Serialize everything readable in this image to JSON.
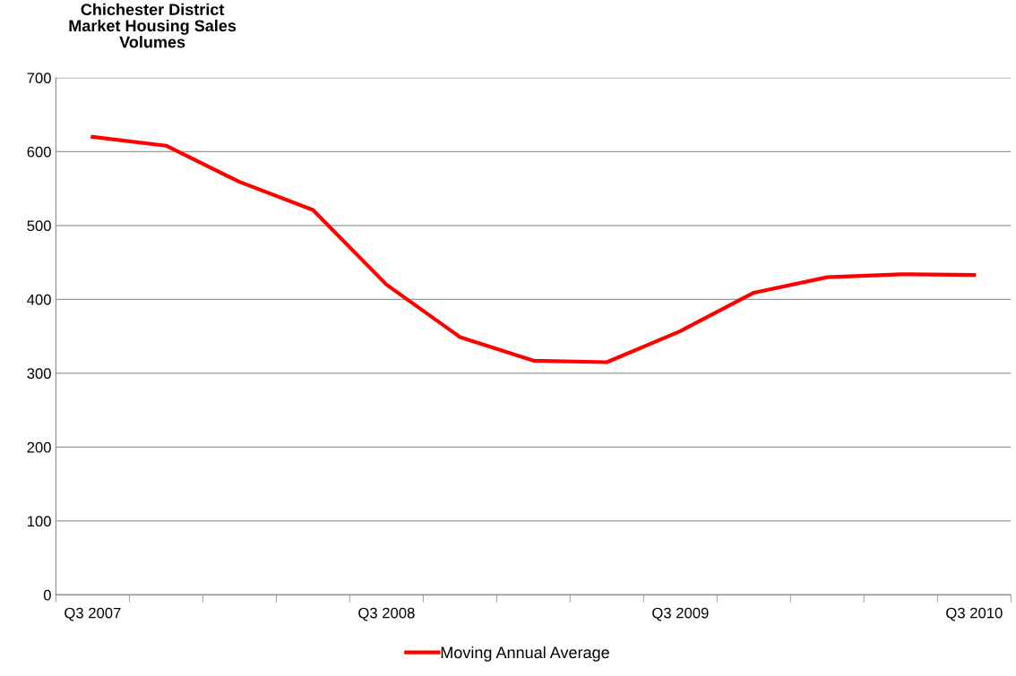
{
  "chart_data": {
    "type": "line",
    "title": "Chichester District\nMarket Housing Sales\nVolumes",
    "categories": [
      "Q3 2007",
      null,
      null,
      null,
      "Q3 2008",
      null,
      null,
      null,
      "Q3 2009",
      null,
      null,
      null,
      "Q3 2010"
    ],
    "series": [
      {
        "name": "Moving Annual Average",
        "color": "#ff0000",
        "values": [
          620,
          608,
          559,
          521,
          420,
          349,
          317,
          315,
          357,
          409,
          430,
          434,
          433
        ]
      }
    ],
    "ylim": [
      0,
      700
    ],
    "yticks": [
      0,
      100,
      200,
      300,
      400,
      500,
      600,
      700
    ],
    "grid": "y",
    "legend": "bottom",
    "marker": "none",
    "line_style": "solid"
  }
}
